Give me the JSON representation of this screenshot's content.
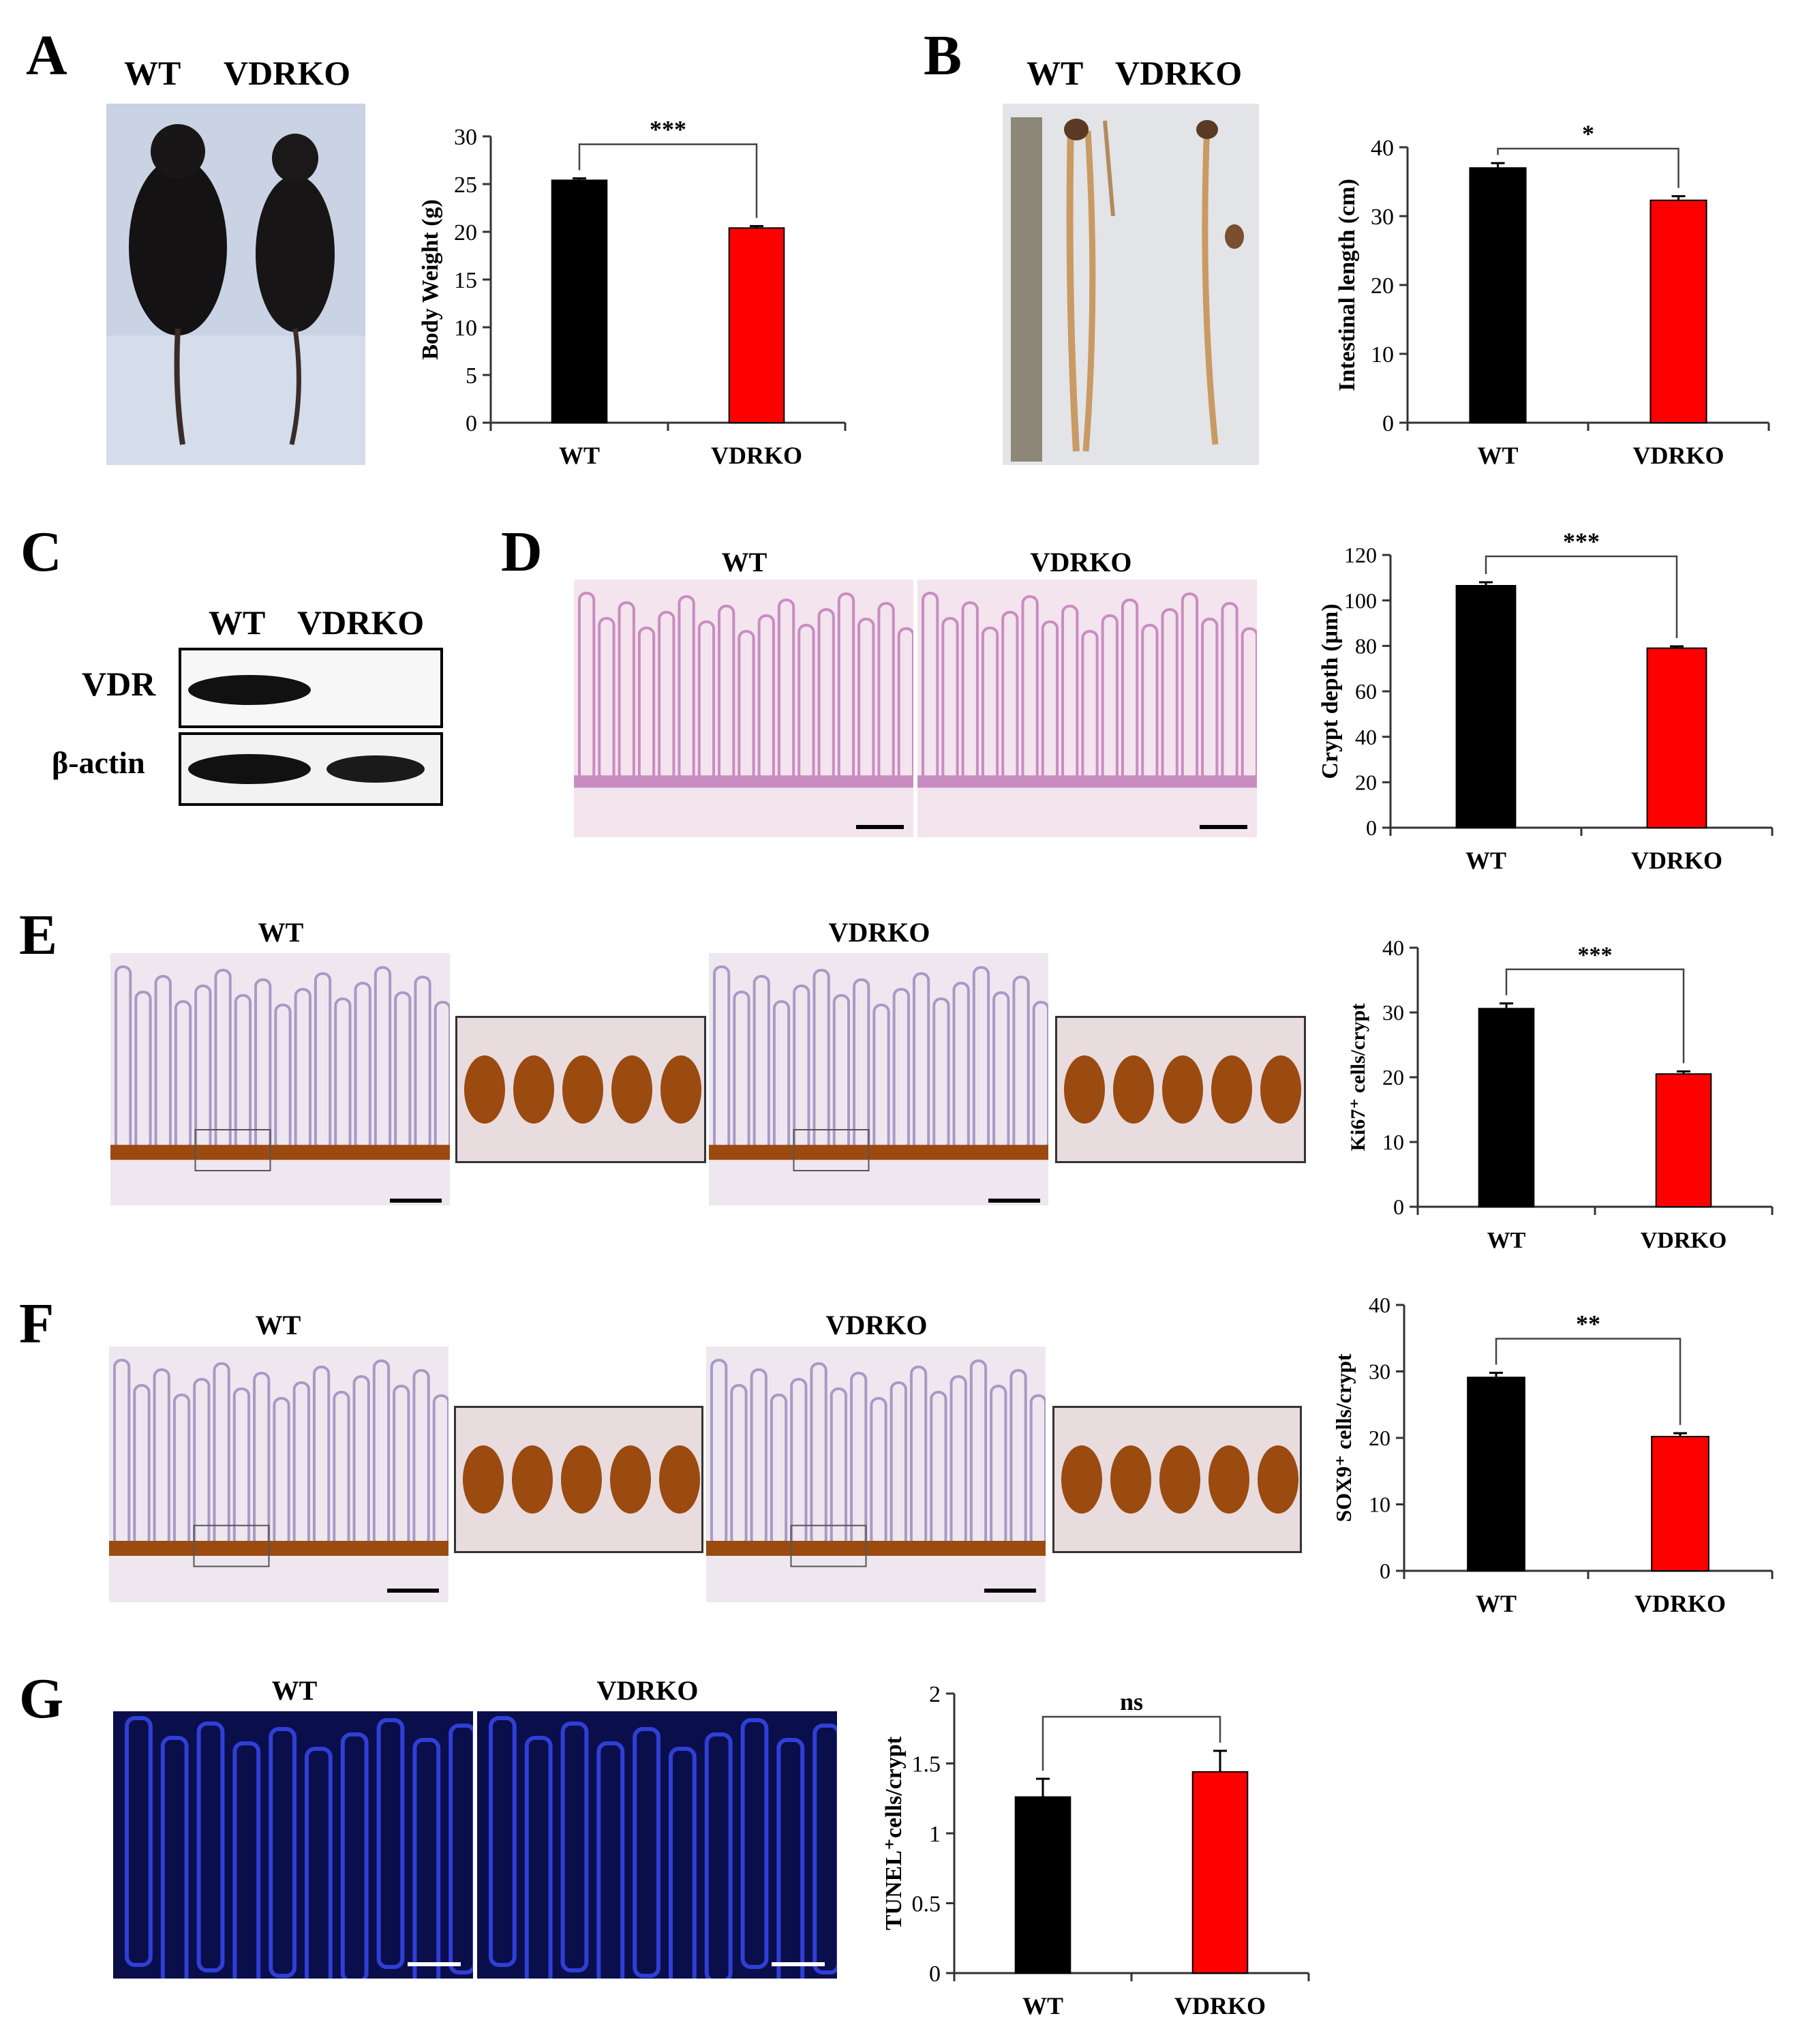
{
  "panels": {
    "A": {
      "letter": "A",
      "labels": [
        "WT",
        "VDRKO"
      ]
    },
    "B": {
      "letter": "B",
      "labels": [
        "WT",
        "VDRKO"
      ]
    },
    "C": {
      "letter": "C",
      "labels": [
        "WT",
        "VDRKO"
      ],
      "rows": [
        "VDR",
        "β-actin"
      ]
    },
    "D": {
      "letter": "D",
      "labels": [
        "WT",
        "VDRKO"
      ]
    },
    "E": {
      "letter": "E",
      "labels": [
        "WT",
        "VDRKO"
      ]
    },
    "F": {
      "letter": "F",
      "labels": [
        "WT",
        "VDRKO"
      ]
    },
    "G": {
      "letter": "G",
      "labels": [
        "WT",
        "VDRKO"
      ]
    }
  },
  "colors": {
    "wt": "#000000",
    "vdrko": "#ff0000",
    "he_bg": "#f3e4ee",
    "he_tissue": "#c98cc0",
    "ihc_bg": "#efe7ef",
    "ihc_brown": "#9b4a10",
    "tunel_bg": "#0a0e4a",
    "tunel_blue": "#2f3fd6"
  },
  "chart_data": [
    {
      "id": "A",
      "type": "bar",
      "categories": [
        "WT",
        "VDRKO"
      ],
      "values": [
        25.4,
        20.4
      ],
      "errors": [
        0.2,
        0.2
      ],
      "ylabel": "Body Weight (g)",
      "ylim": [
        0,
        30
      ],
      "yticks": [
        0,
        5,
        10,
        15,
        20,
        25,
        30
      ],
      "significance": "***"
    },
    {
      "id": "B",
      "type": "bar",
      "categories": [
        "WT",
        "VDRKO"
      ],
      "values": [
        37.0,
        32.3
      ],
      "errors": [
        0.7,
        0.6
      ],
      "ylabel": "Intestinal length (cm)",
      "ylim": [
        0,
        40
      ],
      "yticks": [
        0,
        10,
        20,
        30,
        40
      ],
      "significance": "*"
    },
    {
      "id": "D",
      "type": "bar",
      "categories": [
        "WT",
        "VDRKO"
      ],
      "values": [
        106.5,
        79.0
      ],
      "errors": [
        1.5,
        0.8
      ],
      "ylabel": "Crypt depth (μm)",
      "ylim": [
        0,
        120
      ],
      "yticks": [
        0,
        20,
        40,
        60,
        80,
        100,
        120
      ],
      "significance": "***"
    },
    {
      "id": "E",
      "type": "bar",
      "categories": [
        "WT",
        "VDRKO"
      ],
      "values": [
        30.6,
        20.5
      ],
      "errors": [
        0.8,
        0.4
      ],
      "ylabel": "Ki67⁺ cells/crypt",
      "ylim": [
        0,
        40
      ],
      "yticks": [
        0,
        10,
        20,
        30,
        40
      ],
      "significance": "***"
    },
    {
      "id": "F",
      "type": "bar",
      "categories": [
        "WT",
        "VDRKO"
      ],
      "values": [
        29.1,
        20.2
      ],
      "errors": [
        0.7,
        0.5
      ],
      "ylabel": "SOX9⁺ cells/crypt",
      "ylim": [
        0,
        40
      ],
      "yticks": [
        0,
        10,
        20,
        30,
        40
      ],
      "significance": "**"
    },
    {
      "id": "G",
      "type": "bar",
      "categories": [
        "WT",
        "VDRKO"
      ],
      "values": [
        1.26,
        1.44
      ],
      "errors": [
        0.13,
        0.15
      ],
      "ylabel": "TUNEL⁺cells/crypt",
      "ylim": [
        0,
        2
      ],
      "yticks": [
        0,
        0.5,
        1,
        1.5,
        2
      ],
      "significance": "ns"
    }
  ]
}
